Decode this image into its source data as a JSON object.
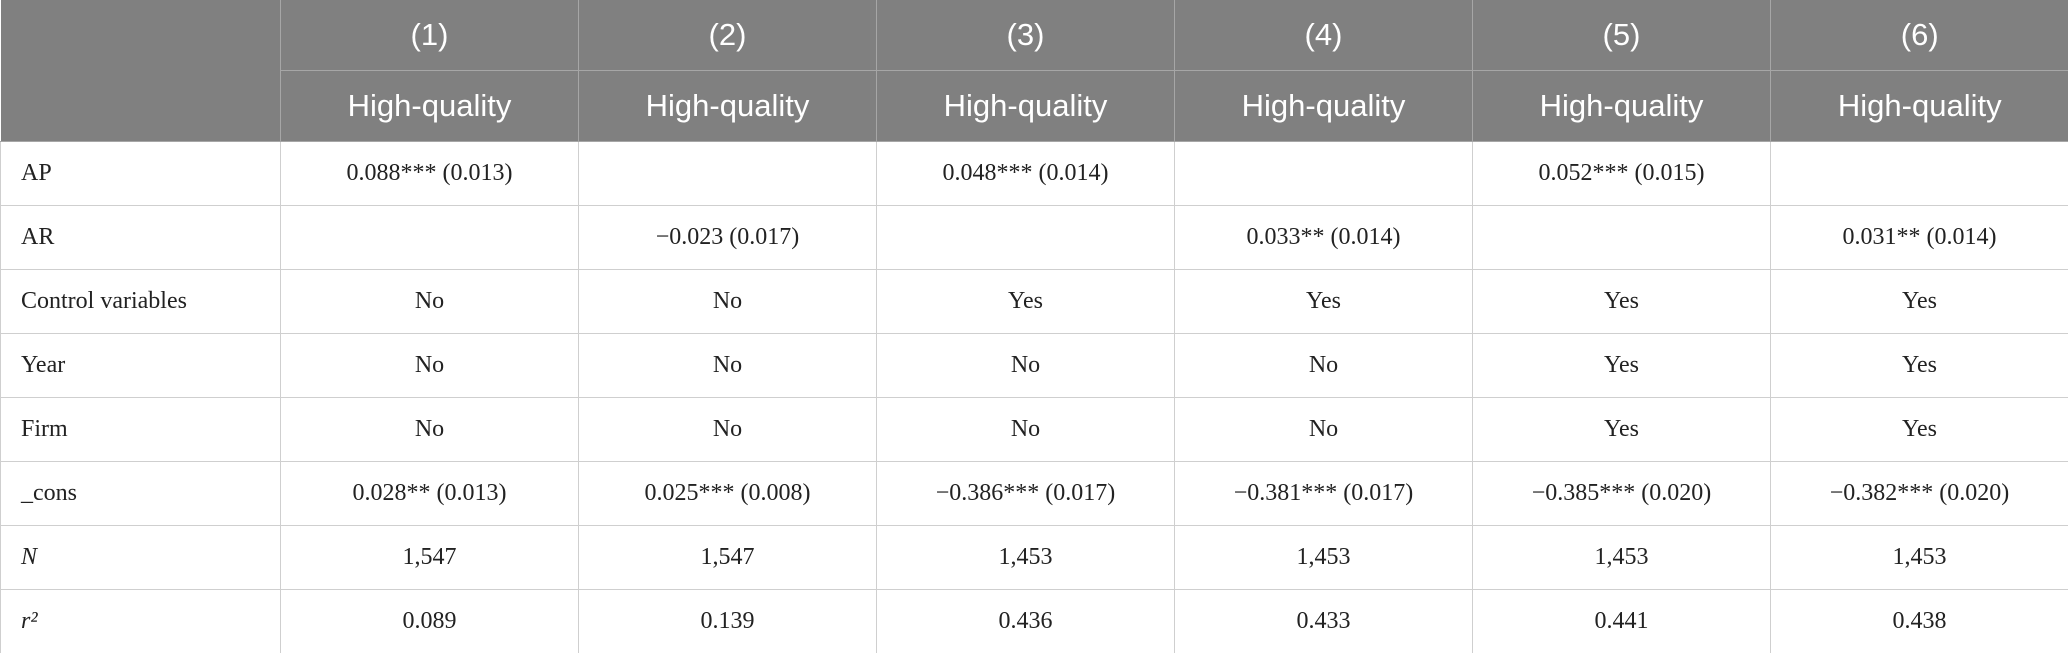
{
  "table": {
    "columns": [
      "(1)",
      "(2)",
      "(3)",
      "(4)",
      "(5)",
      "(6)"
    ],
    "subheaders": [
      "High-quality",
      "High-quality",
      "High-quality",
      "High-quality",
      "High-quality",
      "High-quality"
    ],
    "rows": [
      {
        "label": "AP",
        "cells": [
          "0.088*** (0.013)",
          null,
          "0.048*** (0.014)",
          null,
          "0.052*** (0.015)",
          null
        ]
      },
      {
        "label": "AR",
        "cells": [
          null,
          "−0.023 (0.017)",
          null,
          "0.033** (0.014)",
          null,
          "0.031** (0.014)"
        ]
      },
      {
        "label": "Control variables",
        "cells": [
          "No",
          "No",
          "Yes",
          "Yes",
          "Yes",
          "Yes"
        ]
      },
      {
        "label": "Year",
        "cells": [
          "No",
          "No",
          "No",
          "No",
          "Yes",
          "Yes"
        ]
      },
      {
        "label": "Firm",
        "cells": [
          "No",
          "No",
          "No",
          "No",
          "Yes",
          "Yes"
        ]
      },
      {
        "label": "_cons",
        "cells": [
          "0.028** (0.013)",
          "0.025*** (0.008)",
          "−0.386*** (0.017)",
          "−0.381*** (0.017)",
          "−0.385*** (0.020)",
          "−0.382*** (0.020)"
        ]
      },
      {
        "label": "N",
        "cells": [
          "1,547",
          "1,547",
          "1,453",
          "1,453",
          "1,453",
          "1,453"
        ]
      },
      {
        "label": "r²",
        "cells": [
          "0.089",
          "0.139",
          "0.436",
          "0.433",
          "0.441",
          "0.438"
        ]
      }
    ]
  }
}
